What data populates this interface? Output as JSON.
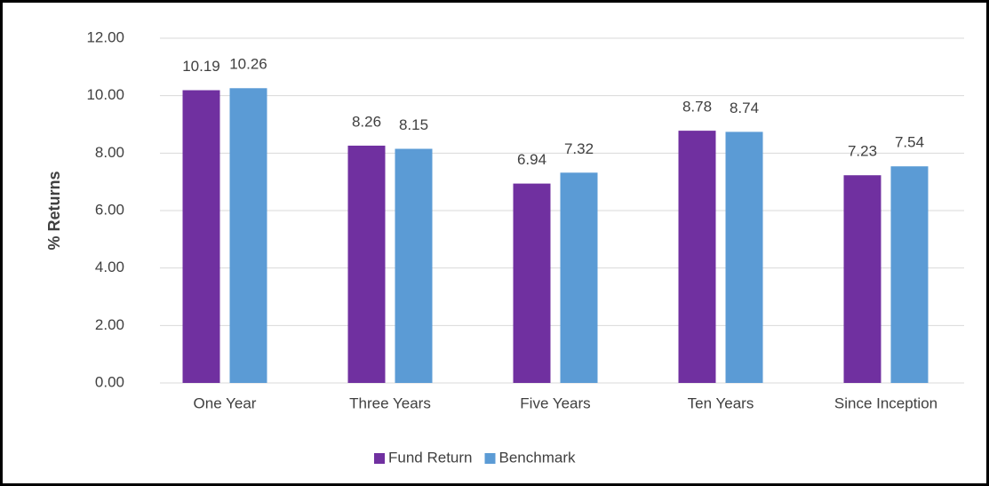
{
  "chart_data": {
    "type": "bar",
    "y_axis_label": "% Returns",
    "categories": [
      "One Year",
      "Three Years",
      "Five Years",
      "Ten Years",
      "Since Inception"
    ],
    "series": [
      {
        "name": "Fund Return",
        "color": "#7030a0",
        "values": [
          10.19,
          8.26,
          6.94,
          8.78,
          7.23
        ]
      },
      {
        "name": "Benchmark",
        "color": "#5b9bd5",
        "values": [
          10.26,
          8.15,
          7.32,
          8.74,
          7.54
        ]
      }
    ],
    "ylim": [
      0,
      12
    ],
    "yticks": [
      {
        "value": 0,
        "label": "0.00"
      },
      {
        "value": 2,
        "label": "2.00"
      },
      {
        "value": 4,
        "label": "4.00"
      },
      {
        "value": 6,
        "label": "6.00"
      },
      {
        "value": 8,
        "label": "8.00"
      },
      {
        "value": 10,
        "label": "10.00"
      },
      {
        "value": 12,
        "label": "12.00"
      }
    ],
    "grid": true,
    "legend": "bottom"
  }
}
